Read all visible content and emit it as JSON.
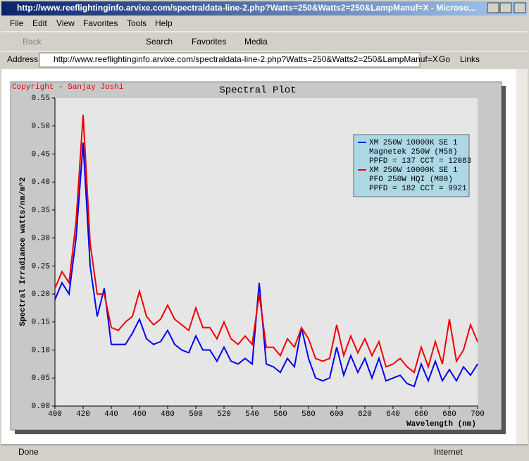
{
  "window": {
    "title": "http://www.reeflightinginfo.arvixe.com/spectraldata-line-2.php?Watts=250&Watts2=250&LampManuf=X - Microso..."
  },
  "menu": [
    "File",
    "Edit",
    "View",
    "Favorites",
    "Tools",
    "Help"
  ],
  "toolbar": {
    "back": "Back",
    "search": "Search",
    "favorites": "Favorites",
    "media": "Media"
  },
  "address": {
    "label": "Address",
    "url": "http://www.reeflightinginfo.arvixe.com/spectraldata-line-2.php?Watts=250&Watts2=250&LampManuf=X",
    "go": "Go",
    "links": "Links"
  },
  "status": {
    "text": "Done",
    "zone": "Internet"
  },
  "chart_data": {
    "type": "line",
    "title": "Spectral Plot",
    "copyright": "Copyright - Sanjay Joshi",
    "xlabel": "Wavelength (nm)",
    "ylabel": "Spectral Irradiance watts/nm/m^2",
    "x": [
      400,
      405,
      410,
      415,
      420,
      425,
      430,
      435,
      440,
      445,
      450,
      455,
      460,
      465,
      470,
      475,
      480,
      485,
      490,
      495,
      500,
      505,
      510,
      515,
      520,
      525,
      530,
      535,
      540,
      545,
      550,
      555,
      560,
      565,
      570,
      575,
      580,
      585,
      590,
      595,
      600,
      605,
      610,
      615,
      620,
      625,
      630,
      635,
      640,
      645,
      650,
      655,
      660,
      665,
      670,
      675,
      680,
      685,
      690,
      695,
      700
    ],
    "series": [
      {
        "name": "XM 250W 10000K SE 1",
        "details": [
          "Magnetek 250W (M58)",
          "PPFD = 137  CCT = 12083"
        ],
        "color": "#0000ee",
        "values": [
          0.19,
          0.22,
          0.2,
          0.3,
          0.47,
          0.25,
          0.16,
          0.21,
          0.11,
          0.11,
          0.11,
          0.13,
          0.155,
          0.12,
          0.11,
          0.115,
          0.135,
          0.11,
          0.1,
          0.095,
          0.125,
          0.1,
          0.1,
          0.08,
          0.105,
          0.08,
          0.075,
          0.085,
          0.075,
          0.22,
          0.075,
          0.07,
          0.06,
          0.085,
          0.07,
          0.14,
          0.085,
          0.05,
          0.045,
          0.05,
          0.105,
          0.055,
          0.09,
          0.06,
          0.085,
          0.05,
          0.085,
          0.045,
          0.05,
          0.055,
          0.04,
          0.035,
          0.075,
          0.045,
          0.08,
          0.045,
          0.065,
          0.045,
          0.07,
          0.055,
          0.075
        ]
      },
      {
        "name": "XM 250W 10000K SE 1",
        "details": [
          "PFO 250W HQI (M80)",
          "PPFD = 182  CCT = 9921"
        ],
        "color": "#ee0000",
        "values": [
          0.21,
          0.24,
          0.22,
          0.33,
          0.52,
          0.29,
          0.2,
          0.2,
          0.14,
          0.135,
          0.15,
          0.16,
          0.205,
          0.16,
          0.145,
          0.155,
          0.18,
          0.155,
          0.145,
          0.135,
          0.175,
          0.14,
          0.14,
          0.12,
          0.15,
          0.12,
          0.11,
          0.125,
          0.11,
          0.2,
          0.105,
          0.105,
          0.09,
          0.12,
          0.105,
          0.14,
          0.12,
          0.085,
          0.08,
          0.085,
          0.145,
          0.09,
          0.125,
          0.095,
          0.12,
          0.09,
          0.115,
          0.07,
          0.075,
          0.085,
          0.07,
          0.06,
          0.105,
          0.07,
          0.115,
          0.075,
          0.155,
          0.08,
          0.1,
          0.145,
          0.115
        ]
      }
    ],
    "xlim": [
      400,
      700
    ],
    "ylim": [
      0,
      0.55
    ],
    "xticks": [
      400,
      420,
      440,
      460,
      480,
      500,
      520,
      540,
      560,
      580,
      600,
      620,
      640,
      660,
      680,
      700
    ],
    "yticks": [
      {
        "value": 0,
        "label": "0.00"
      },
      0.05,
      {
        "value": 0.1,
        "label": "0.10"
      },
      0.15,
      {
        "value": 0.2,
        "label": "0.20"
      },
      0.25,
      {
        "value": 0.3,
        "label": "0.30"
      },
      0.35,
      {
        "value": 0.4,
        "label": "0.40"
      },
      0.45,
      {
        "value": 0.5,
        "label": "0.50"
      },
      0.55
    ],
    "legend": "upper right"
  }
}
